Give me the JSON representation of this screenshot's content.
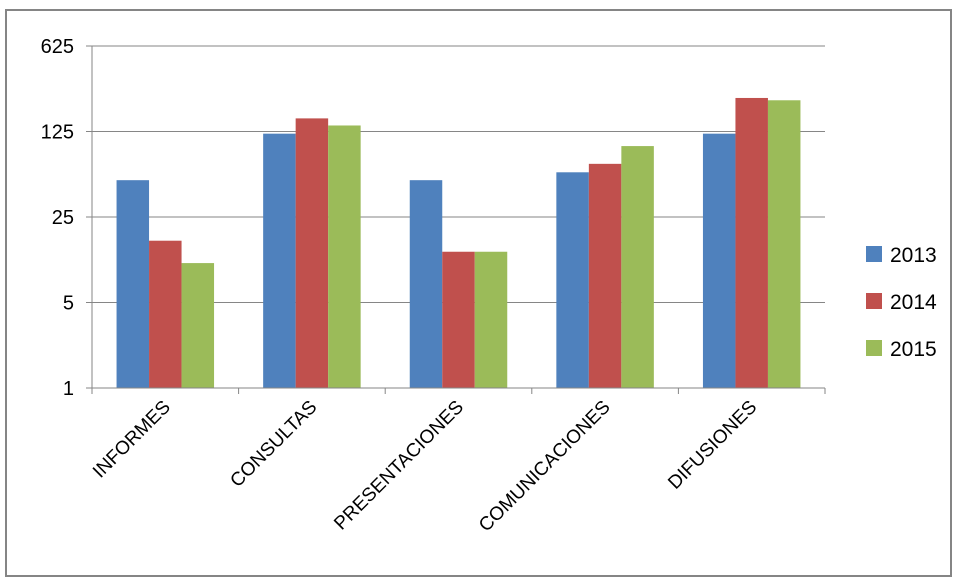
{
  "chart_data": {
    "type": "bar",
    "title": "",
    "xlabel": "",
    "ylabel": "",
    "y_scale": "log",
    "y_log_base": 5,
    "ylim": [
      1,
      625
    ],
    "y_ticks": [
      1,
      5,
      25,
      125,
      625
    ],
    "y_tick_labels": [
      "1",
      "5",
      "25",
      "125",
      "625"
    ],
    "grid": true,
    "legend_position": "right",
    "categories": [
      "INFORMES",
      "CONSULTAS",
      "PRESENTACIONES",
      "COMUNICACIONES",
      "DIFUSIONES"
    ],
    "series": [
      {
        "name": "2013",
        "color": "#4F81BD",
        "values": [
          50,
          120,
          50,
          58,
          120
        ]
      },
      {
        "name": "2014",
        "color": "#C0504D",
        "values": [
          16,
          160,
          13,
          68,
          235
        ]
      },
      {
        "name": "2015",
        "color": "#9BBB59",
        "values": [
          10.5,
          140,
          13,
          95,
          225
        ]
      }
    ]
  }
}
